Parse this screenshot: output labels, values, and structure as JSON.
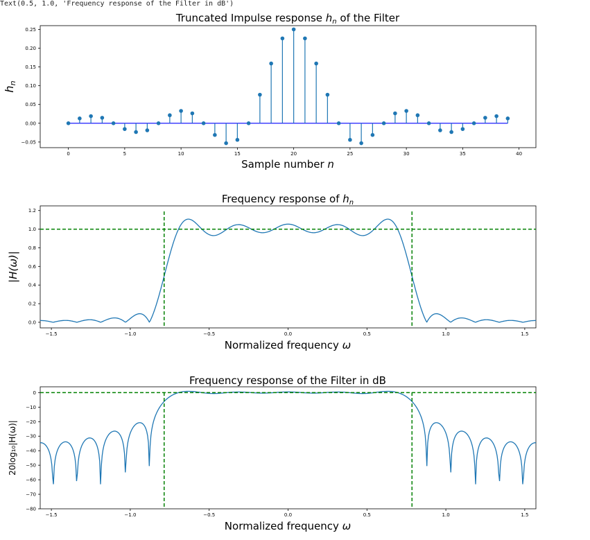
{
  "output_text": "Text(0.5, 1.0, 'Frequency response of the Filter in dB')",
  "colors": {
    "stem": "#1f77b4",
    "baseline": "#0000ff",
    "curve": "#1f77b4",
    "guide": "#008000"
  },
  "chart_data": [
    {
      "type": "stem",
      "title_prefix": "Truncated Impulse response ",
      "title_sym": "h",
      "title_sub": "n",
      "title_suffix": " of the Filter",
      "xlabel": "Sample number ",
      "xlabel_sym": "n",
      "ylabel_sym": "h",
      "ylabel_sub": "n",
      "xlim": [
        -2.5,
        41.5
      ],
      "ylim": [
        -0.065,
        0.26
      ],
      "x": [
        0,
        1,
        2,
        3,
        4,
        5,
        6,
        7,
        8,
        9,
        10,
        11,
        12,
        13,
        14,
        15,
        16,
        17,
        18,
        19,
        20,
        21,
        22,
        23,
        24,
        25,
        26,
        27,
        28,
        29,
        30,
        31,
        32,
        33,
        34,
        35,
        36,
        37,
        38,
        39
      ],
      "values": [
        0,
        0.0129,
        0.0189,
        0.0146,
        0,
        -0.0154,
        -0.0234,
        -0.0188,
        0,
        0.0214,
        0.0328,
        0.0264,
        0,
        -0.0312,
        -0.0531,
        -0.0442,
        0,
        0.076,
        0.1592,
        0.226,
        0.25,
        0.226,
        0.1592,
        0.076,
        0,
        -0.0442,
        -0.0531,
        -0.0312,
        0,
        0.0264,
        0.0328,
        0.0214,
        0,
        -0.0188,
        -0.0234,
        -0.0154,
        0,
        0.0146,
        0.0189,
        0.0129
      ],
      "xticks": [
        0,
        5,
        10,
        15,
        20,
        25,
        30,
        35,
        40
      ],
      "xtick_labels": [
        "0",
        "5",
        "10",
        "15",
        "20",
        "25",
        "30",
        "35",
        "40"
      ],
      "yticks": [
        -0.05,
        0,
        0.05,
        0.1,
        0.15,
        0.2,
        0.25
      ],
      "ytick_labels": [
        "−0.05",
        "0.00",
        "0.05",
        "0.10",
        "0.15",
        "0.20",
        "0.25"
      ]
    },
    {
      "type": "line",
      "title_prefix": "Frequency response of ",
      "title_sym": "h",
      "title_sub": "n",
      "xlabel": "Normalized frequency ",
      "xlabel_sym": "ω",
      "ylabel": "|H(ω)|",
      "xlim": [
        -1.5708,
        1.5708
      ],
      "ylim": [
        -0.06,
        1.25
      ],
      "series_name": "magnitude",
      "cutoff": 0.7854,
      "guide_level": 1.0,
      "xticks": [
        -1.5,
        -1.0,
        -0.5,
        0.0,
        0.5,
        1.0,
        1.5
      ],
      "xtick_labels": [
        "−1.5",
        "−1.0",
        "−0.5",
        "0.0",
        "0.5",
        "1.0",
        "1.5"
      ],
      "yticks": [
        0,
        0.2,
        0.4,
        0.6,
        0.8,
        1.0,
        1.2
      ],
      "ytick_labels": [
        "0.0",
        "0.2",
        "0.4",
        "0.6",
        "0.8",
        "1.0",
        "1.2"
      ]
    },
    {
      "type": "line",
      "title": "Frequency response of the Filter in dB",
      "xlabel": "Normalized frequency ",
      "xlabel_sym": "ω",
      "ylabel": "20log₁₀|H(ω)|",
      "xlim": [
        -1.5708,
        1.5708
      ],
      "ylim": [
        -80,
        4
      ],
      "series_name": "magnitude_db",
      "cutoff": 0.7854,
      "guide_level": 0,
      "xticks": [
        -1.5,
        -1.0,
        -0.5,
        0.0,
        0.5,
        1.0,
        1.5
      ],
      "xtick_labels": [
        "−1.5",
        "−1.0",
        "−0.5",
        "0.0",
        "0.5",
        "1.0",
        "1.5"
      ],
      "yticks": [
        -80,
        -70,
        -60,
        -50,
        -40,
        -30,
        -20,
        -10,
        0
      ],
      "ytick_labels": [
        "−80",
        "−70",
        "−60",
        "−50",
        "−40",
        "−30",
        "−20",
        "−10",
        "0"
      ]
    }
  ]
}
